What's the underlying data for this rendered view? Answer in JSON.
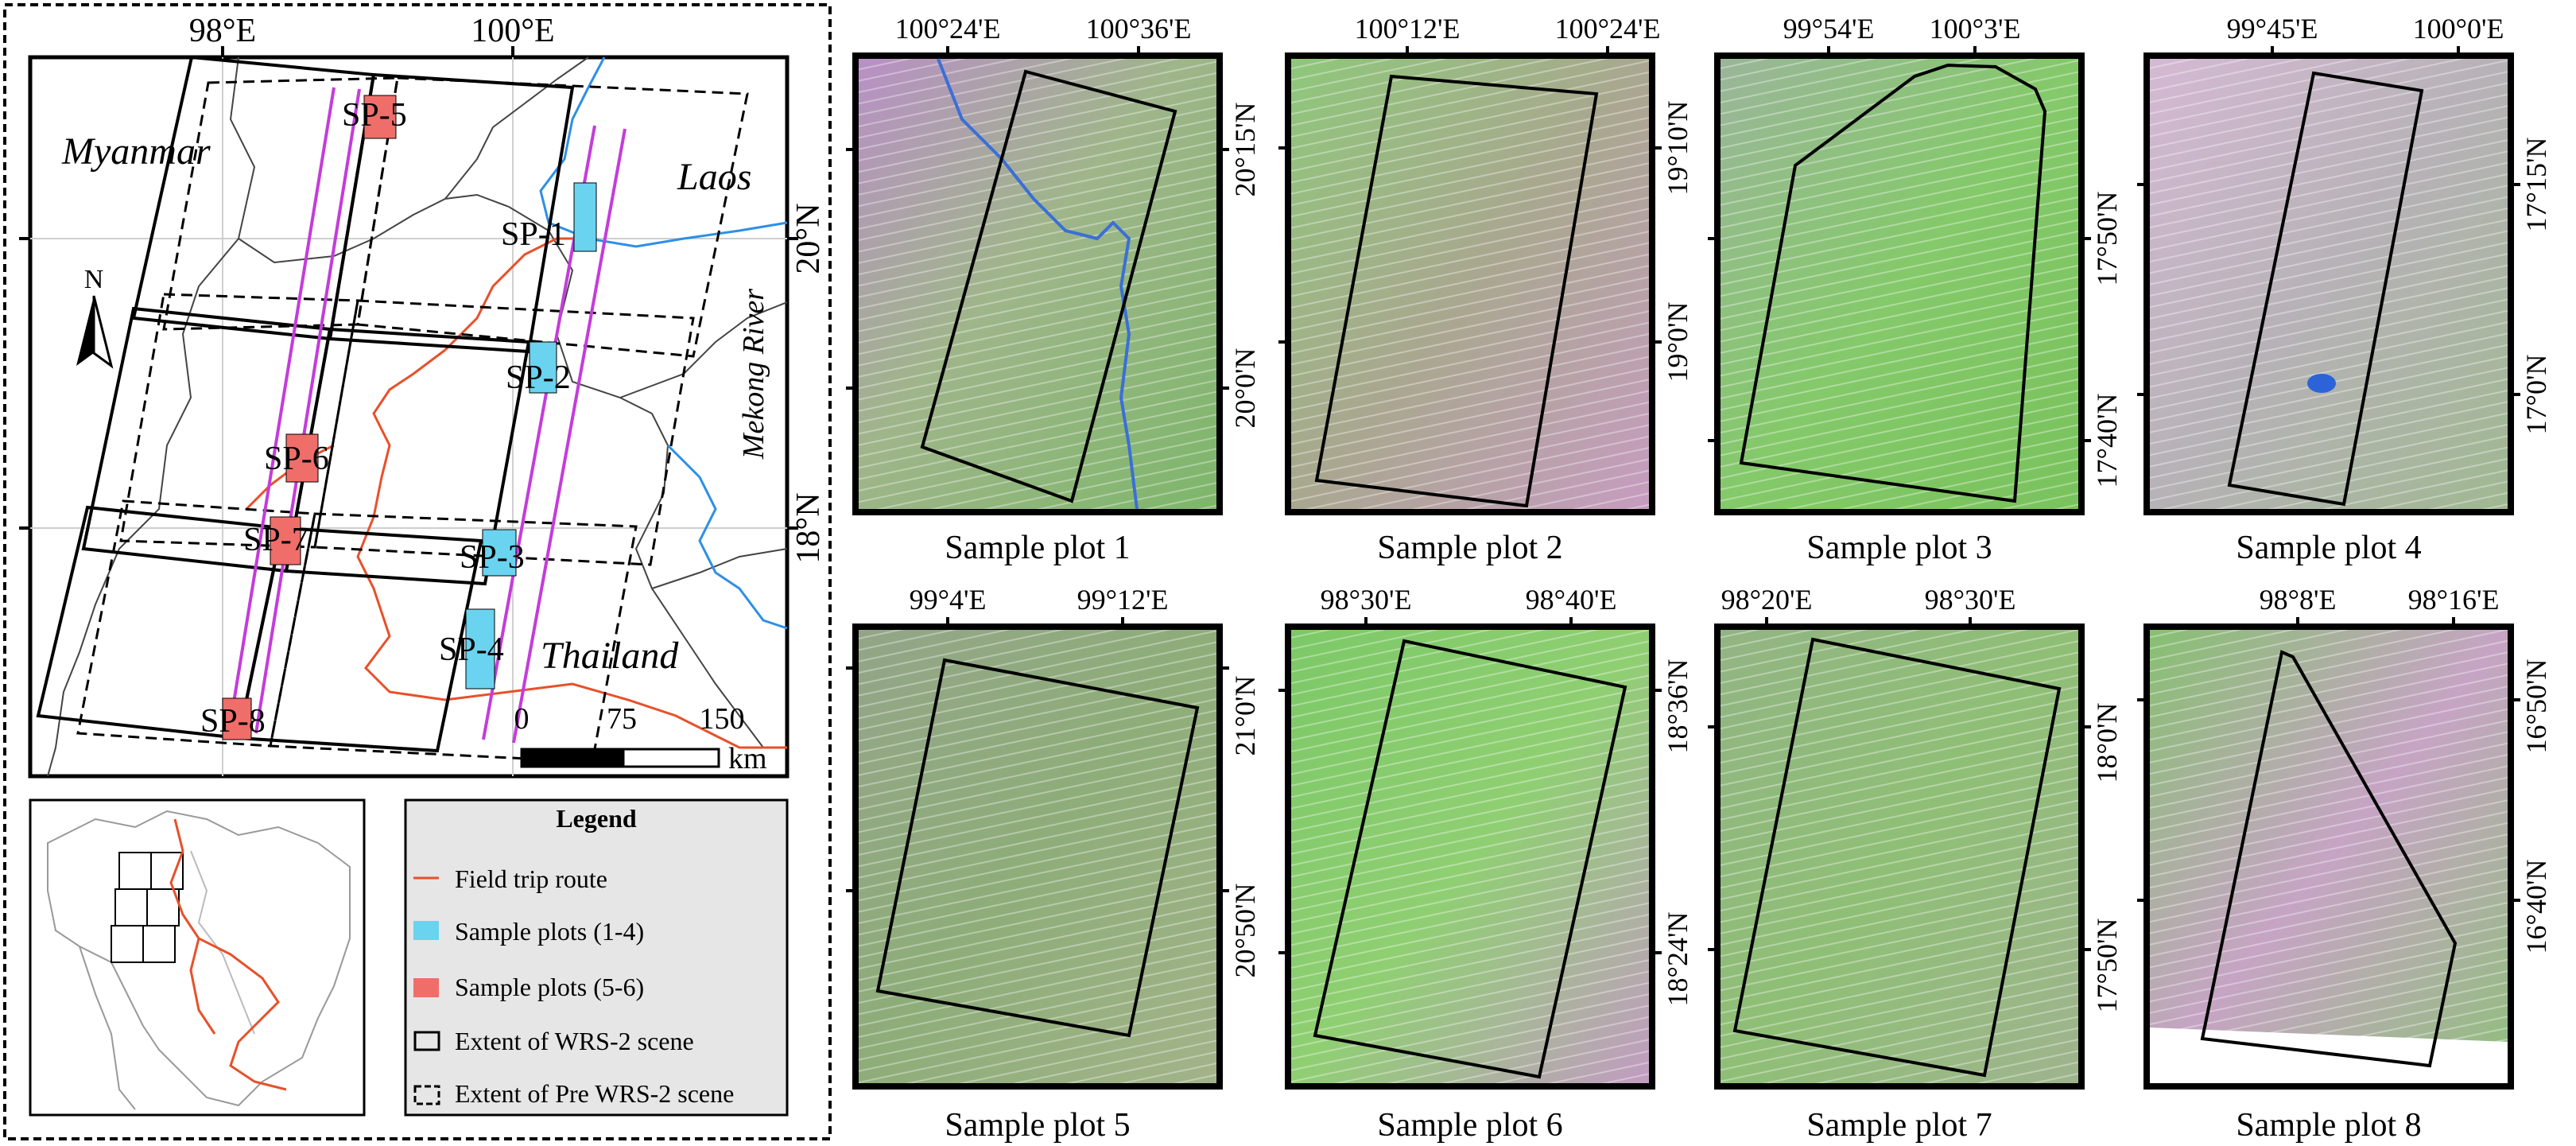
{
  "overview": {
    "lon_labels": [
      "98°E",
      "100°E"
    ],
    "lat_labels": [
      "20°N",
      "18°N"
    ],
    "countries": [
      "Myanmar",
      "Laos",
      "Thailand"
    ],
    "river": "Mekong River",
    "north": "N",
    "plots": [
      "SP-1",
      "SP-2",
      "SP-3",
      "SP-4",
      "SP-5",
      "SP-6",
      "SP-7",
      "SP-8"
    ],
    "scale": {
      "ticks": [
        "0",
        "75",
        "150"
      ],
      "unit": "km"
    }
  },
  "legend": {
    "title": "Legend",
    "items": [
      {
        "label": "Field trip route",
        "color": "#e8502a"
      },
      {
        "label": "Sample plots (1-4)",
        "color": "#6ad3ef"
      },
      {
        "label": "Sample plots (5-6)",
        "color": "#ef6e6a"
      },
      {
        "label": "Extent of WRS-2 scene"
      },
      {
        "label": "Extent of Pre WRS-2 scene"
      }
    ]
  },
  "panels": [
    {
      "title": "Sample plot 1",
      "top": [
        "100°24'E",
        "100°36'E"
      ],
      "right": [
        "20°15'N",
        "20°0'N"
      ]
    },
    {
      "title": "Sample plot 2",
      "top": [
        "100°12'E",
        "100°24'E"
      ],
      "right": [
        "19°10'N",
        "19°0'N"
      ]
    },
    {
      "title": "Sample plot 3",
      "top": [
        "99°54'E",
        "100°3'E"
      ],
      "right": [
        "17°50'N",
        "17°40'N"
      ]
    },
    {
      "title": "Sample plot 4",
      "top": [
        "99°45'E",
        "100°0'E"
      ],
      "right": [
        "17°15'N",
        "17°0'N"
      ]
    },
    {
      "title": "Sample plot 5",
      "top": [
        "99°4'E",
        "99°12'E"
      ],
      "right": [
        "21°0'N",
        "20°50'N"
      ]
    },
    {
      "title": "Sample plot 6",
      "top": [
        "98°30'E",
        "98°40'E"
      ],
      "right": [
        "18°36'N",
        "18°24'N"
      ]
    },
    {
      "title": "Sample plot 7",
      "top": [
        "98°20'E",
        "98°30'E"
      ],
      "right": [
        "18°0'N",
        "17°50'N"
      ]
    },
    {
      "title": "Sample plot 8",
      "top": [
        "98°8'E",
        "98°16'E"
      ],
      "right": [
        "16°50'N",
        "16°40'N"
      ]
    }
  ]
}
